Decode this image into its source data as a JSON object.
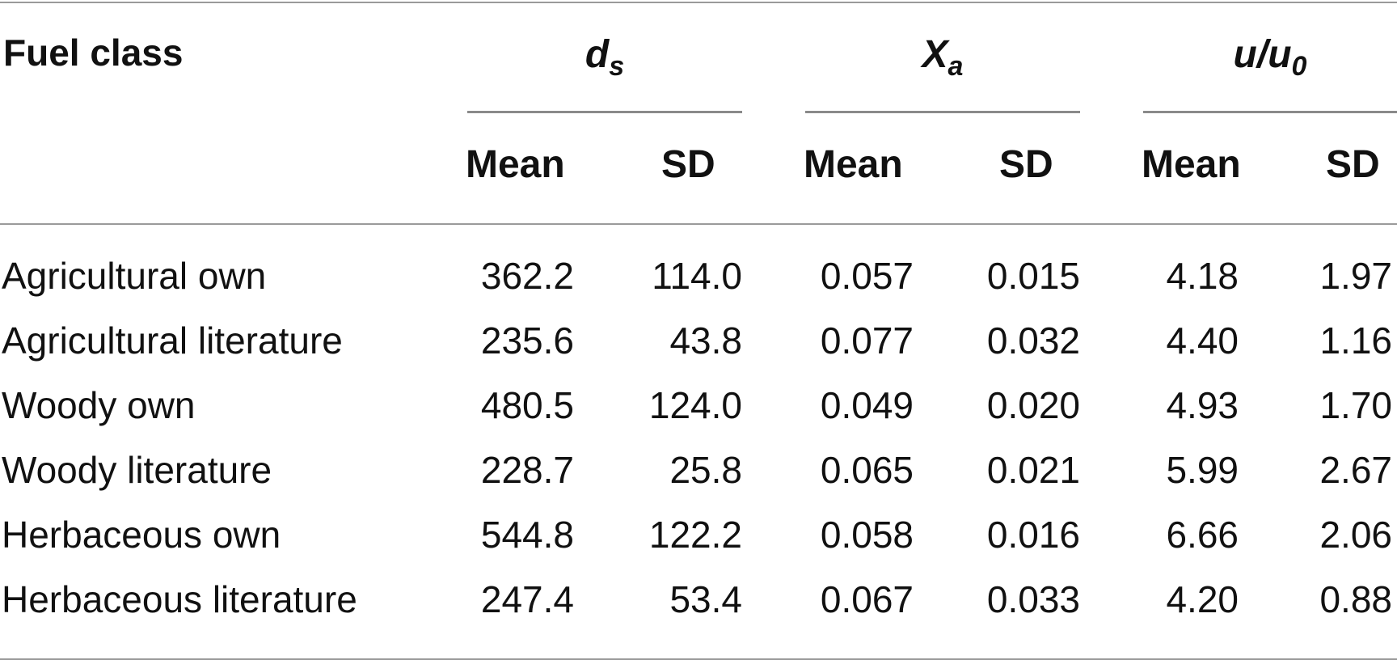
{
  "table": {
    "header": {
      "fuel_class": "Fuel class",
      "groups": [
        {
          "symbol": "d",
          "subscript": "s"
        },
        {
          "symbol": "X",
          "subscript": "a"
        },
        {
          "symbol": "u/u",
          "subscript": "0"
        }
      ],
      "sub_headers": [
        "Mean",
        "SD",
        "Mean",
        "SD",
        "Mean",
        "SD"
      ]
    },
    "rows": [
      {
        "label": "Agricultural own",
        "values": [
          "362.2",
          "114.0",
          "0.057",
          "0.015",
          "4.18",
          "1.97"
        ]
      },
      {
        "label": "Agricultural literature",
        "values": [
          "235.6",
          "43.8",
          "0.077",
          "0.032",
          "4.40",
          "1.16"
        ]
      },
      {
        "label": "Woody own",
        "values": [
          "480.5",
          "124.0",
          "0.049",
          "0.020",
          "4.93",
          "1.70"
        ]
      },
      {
        "label": "Woody literature",
        "values": [
          "228.7",
          "25.8",
          "0.065",
          "0.021",
          "5.99",
          "2.67"
        ]
      },
      {
        "label": "Herbaceous own",
        "values": [
          "544.8",
          "122.2",
          "0.058",
          "0.016",
          "6.66",
          "2.06"
        ]
      },
      {
        "label": "Herbaceous literature",
        "values": [
          "247.4",
          "53.4",
          "0.067",
          "0.033",
          "4.20",
          "0.88"
        ]
      }
    ]
  }
}
